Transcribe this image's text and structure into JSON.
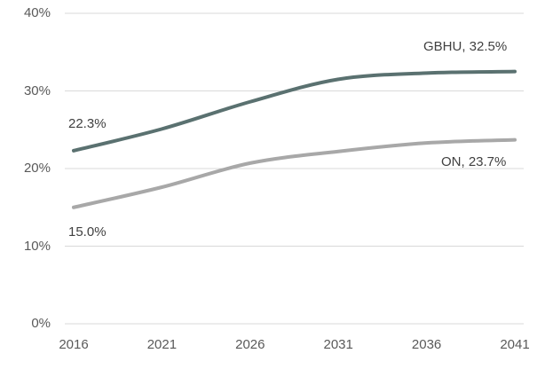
{
  "chart_data": {
    "type": "line",
    "title": "",
    "xlabel": "",
    "ylabel": "",
    "x": [
      2016,
      2021,
      2026,
      2031,
      2036,
      2041
    ],
    "x_ticks": [
      "2016",
      "2021",
      "2026",
      "2031",
      "2036",
      "2041"
    ],
    "y_ticks": [
      {
        "value": 0,
        "label": "0%"
      },
      {
        "value": 10,
        "label": "10%"
      },
      {
        "value": 20,
        "label": "20%"
      },
      {
        "value": 30,
        "label": "30%"
      },
      {
        "value": 40,
        "label": "40%"
      }
    ],
    "ylim": [
      0,
      40
    ],
    "xlim": [
      2016,
      2041
    ],
    "grid": "horizontal",
    "legend": "none-direct-labels",
    "series": [
      {
        "name": "GBHU",
        "color": "#5a7170",
        "values": [
          22.3,
          25.1,
          28.6,
          31.5,
          32.3,
          32.5
        ],
        "start_label": "22.3%",
        "end_label": "GBHU, 32.5%"
      },
      {
        "name": "ON",
        "color": "#a8a8a8",
        "values": [
          15.0,
          17.6,
          20.7,
          22.2,
          23.3,
          23.7
        ],
        "start_label": "15.0%",
        "end_label": "ON, 23.7%"
      }
    ]
  },
  "colors": {
    "background": "#ffffff",
    "grid": "#d9d9d9",
    "axis_text": "#595959",
    "label_text": "#404040"
  }
}
